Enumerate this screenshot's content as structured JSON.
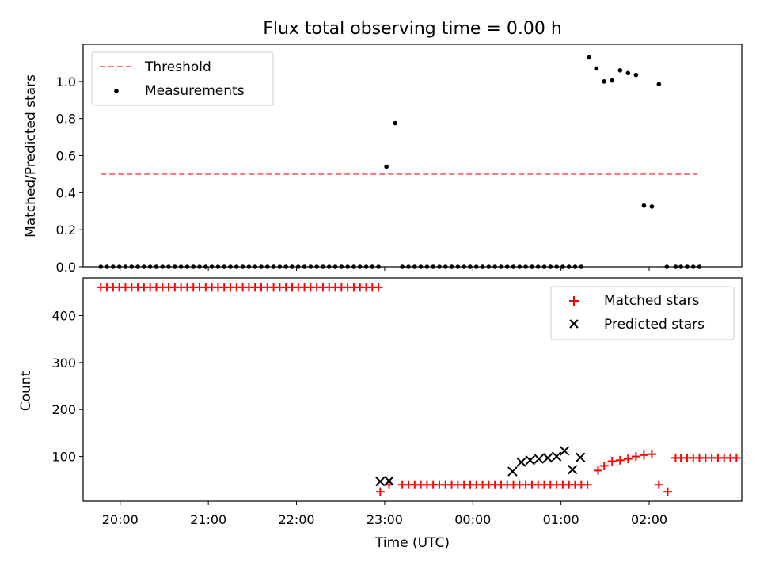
{
  "chart_data": [
    {
      "panel": "top",
      "type": "scatter",
      "title": "Flux total observing time = 0.00 h",
      "xlabel": "",
      "ylabel": "Matched/Predicted stars",
      "xlim": [
        -0.42,
        7.05
      ],
      "ylim": [
        0,
        1.2
      ],
      "yticks": [
        0,
        0.2,
        0.4,
        0.6,
        0.8,
        1.0
      ],
      "ytick_labels": [
        "0.0",
        "0.2",
        "0.4",
        "0.6",
        "0.8",
        "1.0"
      ],
      "legend_location": "upper-left",
      "series": [
        {
          "name": "Threshold",
          "kind": "dashed-line",
          "color": "#ff6f6f",
          "x": [
            -0.22,
            6.55
          ],
          "y": [
            0.5,
            0.5
          ]
        },
        {
          "name": "Measurements",
          "kind": "points",
          "color": "#000000",
          "x": [
            -0.22,
            -0.15,
            -0.08,
            -0.01,
            0.06,
            0.13,
            0.2,
            0.27,
            0.34,
            0.41,
            0.48,
            0.55,
            0.62,
            0.69,
            0.76,
            0.83,
            0.9,
            0.97,
            1.04,
            1.11,
            1.18,
            1.25,
            1.32,
            1.39,
            1.46,
            1.53,
            1.6,
            1.67,
            1.74,
            1.81,
            1.88,
            1.95,
            2.02,
            2.09,
            2.16,
            2.23,
            2.3,
            2.37,
            2.44,
            2.51,
            2.58,
            2.65,
            2.72,
            2.79,
            2.86,
            2.93,
            3.02,
            3.12,
            3.2,
            3.27,
            3.34,
            3.41,
            3.48,
            3.55,
            3.62,
            3.69,
            3.76,
            3.83,
            3.9,
            3.97,
            4.04,
            4.11,
            4.18,
            4.25,
            4.32,
            4.39,
            4.46,
            4.53,
            4.6,
            4.67,
            4.74,
            4.81,
            4.88,
            4.95,
            5.02,
            5.09,
            5.16,
            5.23,
            5.32,
            5.4,
            5.49,
            5.58,
            5.67,
            5.76,
            5.85,
            5.94,
            6.03,
            6.11,
            6.2,
            6.3,
            6.36,
            6.43,
            6.5,
            6.57
          ],
          "y": [
            0,
            0,
            0,
            0,
            0,
            0,
            0,
            0,
            0,
            0,
            0,
            0,
            0,
            0,
            0,
            0,
            0,
            0,
            0,
            0,
            0,
            0,
            0,
            0,
            0,
            0,
            0,
            0,
            0,
            0,
            0,
            0,
            0,
            0,
            0,
            0,
            0,
            0,
            0,
            0,
            0,
            0,
            0,
            0,
            0,
            0,
            0.54,
            0.775,
            0,
            0,
            0,
            0,
            0,
            0,
            0,
            0,
            0,
            0,
            0,
            0,
            0,
            0,
            0,
            0,
            0,
            0,
            0,
            0,
            0,
            0,
            0,
            0,
            0,
            0,
            0,
            0,
            0,
            0,
            1.13,
            1.07,
            1.0,
            1.005,
            1.06,
            1.045,
            1.035,
            0.33,
            0.325,
            0.985,
            0,
            0,
            0,
            0,
            0,
            0
          ]
        }
      ]
    },
    {
      "panel": "bottom",
      "type": "scatter",
      "title": "",
      "xlabel": "Time (UTC)",
      "ylabel": "Count",
      "xlim": [
        -0.42,
        7.05
      ],
      "ylim": [
        5,
        480
      ],
      "yticks": [
        100,
        200,
        300,
        400
      ],
      "ytick_labels": [
        "100",
        "200",
        "300",
        "400"
      ],
      "xticks": [
        0,
        1,
        2,
        3,
        4,
        5,
        6
      ],
      "xtick_labels": [
        "20:00",
        "21:00",
        "22:00",
        "23:00",
        "00:00",
        "01:00",
        "02:00"
      ],
      "legend_location": "upper-right",
      "series": [
        {
          "name": "Matched stars",
          "marker": "plus",
          "color": "#ff0000",
          "x": [
            -0.22,
            -0.15,
            -0.08,
            -0.01,
            0.06,
            0.13,
            0.2,
            0.27,
            0.34,
            0.41,
            0.48,
            0.55,
            0.62,
            0.69,
            0.76,
            0.83,
            0.9,
            0.97,
            1.04,
            1.11,
            1.18,
            1.25,
            1.32,
            1.39,
            1.46,
            1.53,
            1.6,
            1.67,
            1.74,
            1.81,
            1.88,
            1.95,
            2.02,
            2.09,
            2.16,
            2.23,
            2.3,
            2.37,
            2.44,
            2.51,
            2.58,
            2.65,
            2.72,
            2.79,
            2.86,
            2.93,
            2.95,
            3.05,
            3.2,
            3.27,
            3.34,
            3.41,
            3.48,
            3.55,
            3.62,
            3.69,
            3.76,
            3.83,
            3.9,
            3.97,
            4.04,
            4.11,
            4.18,
            4.25,
            4.32,
            4.39,
            4.46,
            4.53,
            4.6,
            4.67,
            4.74,
            4.81,
            4.88,
            4.95,
            5.02,
            5.09,
            5.16,
            5.23,
            5.3,
            5.42,
            5.49,
            5.58,
            5.67,
            5.76,
            5.85,
            5.94,
            6.03,
            6.11,
            6.21,
            6.3,
            6.36,
            6.43,
            6.5,
            6.57,
            6.64,
            6.71,
            6.78,
            6.85,
            6.92,
            6.99
          ],
          "y": [
            460,
            460,
            460,
            460,
            460,
            460,
            460,
            460,
            460,
            460,
            460,
            460,
            460,
            460,
            460,
            460,
            460,
            460,
            460,
            460,
            460,
            460,
            460,
            460,
            460,
            460,
            460,
            460,
            460,
            460,
            460,
            460,
            460,
            460,
            460,
            460,
            460,
            460,
            460,
            460,
            460,
            460,
            460,
            460,
            460,
            460,
            25,
            40,
            40,
            40,
            40,
            40,
            40,
            40,
            40,
            40,
            40,
            40,
            40,
            40,
            40,
            40,
            40,
            40,
            40,
            40,
            40,
            40,
            40,
            40,
            40,
            40,
            40,
            40,
            40,
            40,
            40,
            40,
            40,
            70,
            80,
            90,
            92,
            95,
            100,
            103,
            105,
            40,
            25,
            97,
            97,
            97,
            97,
            97,
            97,
            97,
            97,
            97,
            97,
            97
          ]
        },
        {
          "name": "Predicted stars",
          "marker": "x",
          "color": "#000000",
          "x": [
            2.95,
            3.05,
            4.45,
            4.55,
            4.65,
            4.75,
            4.85,
            4.95,
            5.04,
            5.13,
            5.22
          ],
          "y": [
            47,
            48,
            68,
            88,
            92,
            95,
            97,
            100,
            112,
            72,
            98
          ]
        }
      ]
    }
  ]
}
